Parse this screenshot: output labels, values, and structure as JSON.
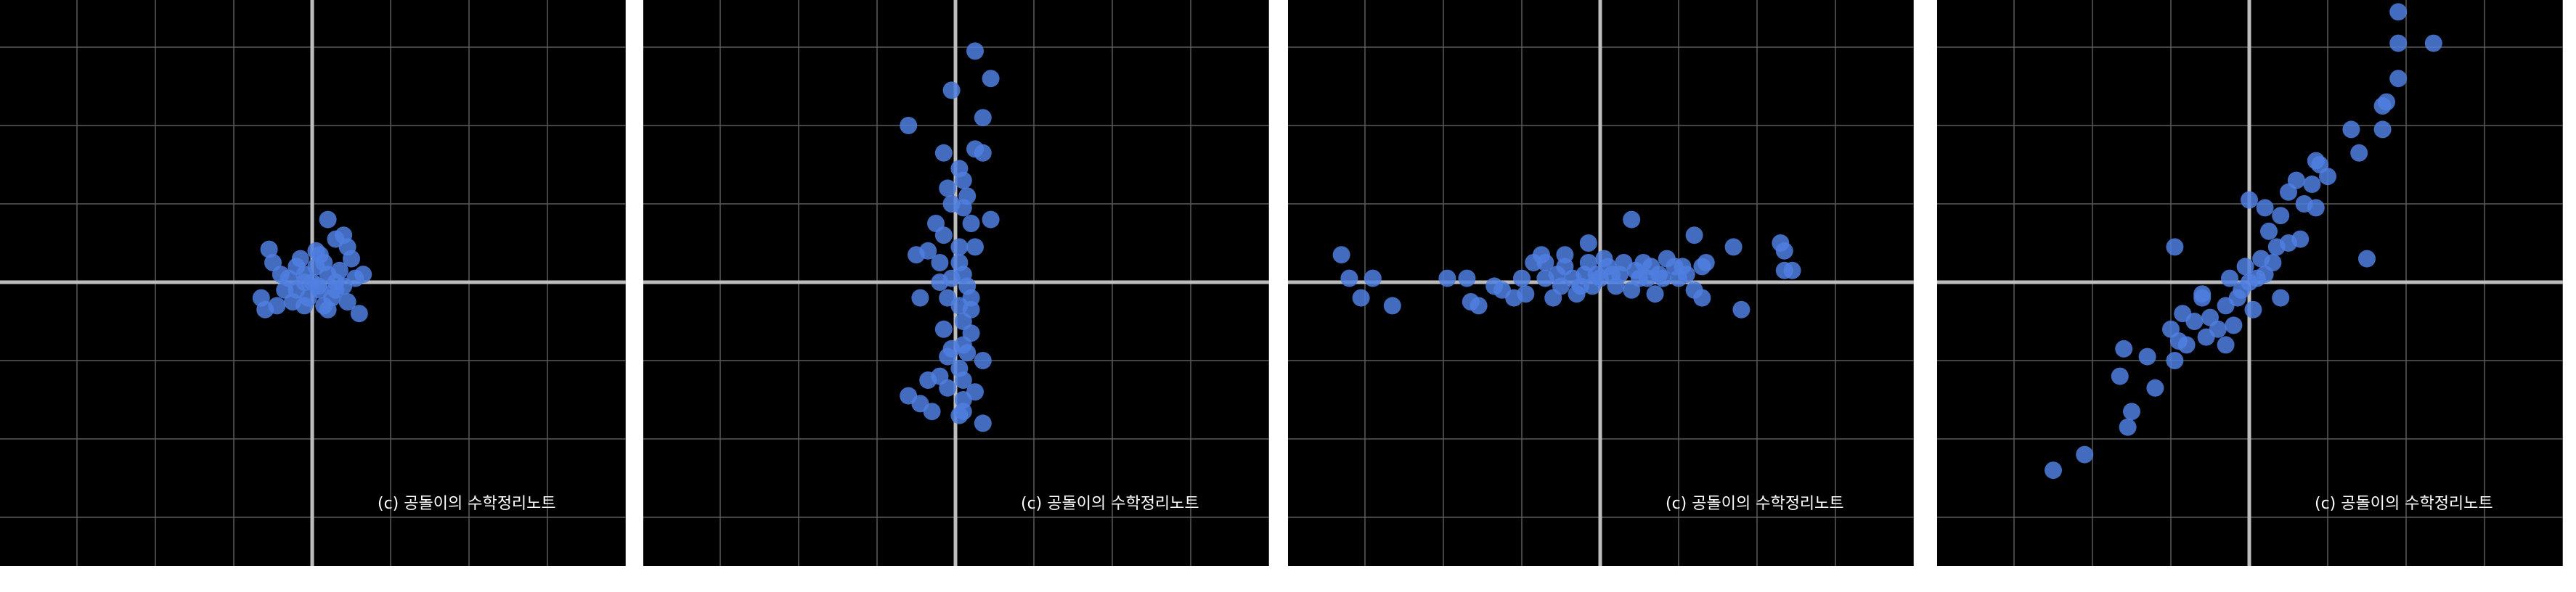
{
  "watermark": "(c) 공돌이의 수학정리노트",
  "colors": {
    "background": "#000000",
    "grid": "#5a5a5a",
    "axis": "#bdbdbd",
    "point": "#4f7fe0"
  },
  "chart_data": [
    {
      "type": "scatter",
      "title": "",
      "xlabel": "",
      "ylabel": "",
      "xlim": [
        -4,
        4
      ],
      "ylim": [
        -3.5,
        3.5
      ],
      "grid": true,
      "points": [
        [
          0,
          0
        ],
        [
          -0.1,
          0.1
        ],
        [
          0.1,
          -0.1
        ],
        [
          0.2,
          0.1
        ],
        [
          -0.2,
          -0.1
        ],
        [
          0.05,
          0.2
        ],
        [
          -0.05,
          -0.2
        ],
        [
          0.3,
          0
        ],
        [
          -0.3,
          0.05
        ],
        [
          0.15,
          0.25
        ],
        [
          -0.15,
          0.3
        ],
        [
          0.25,
          -0.2
        ],
        [
          -0.25,
          -0.25
        ],
        [
          0.35,
          0.15
        ],
        [
          -0.35,
          -0.1
        ],
        [
          0.1,
          0.35
        ],
        [
          -0.1,
          -0.3
        ],
        [
          0.4,
          -0.05
        ],
        [
          -0.4,
          0.1
        ],
        [
          0.2,
          -0.35
        ],
        [
          0.05,
          0.4
        ],
        [
          -0.5,
          0.25
        ],
        [
          0.5,
          0.3
        ],
        [
          0.45,
          -0.25
        ],
        [
          -0.45,
          -0.3
        ],
        [
          0.6,
          -0.4
        ],
        [
          -0.6,
          -0.35
        ],
        [
          0.65,
          0.1
        ],
        [
          -0.55,
          0.42
        ],
        [
          0.3,
          0.55
        ],
        [
          0.2,
          0.8
        ],
        [
          0.4,
          0.6
        ],
        [
          0.15,
          -0.3
        ],
        [
          -0.2,
          0.2
        ],
        [
          0.3,
          -0.1
        ],
        [
          -0.1,
          0
        ],
        [
          0.08,
          -0.05
        ],
        [
          0.55,
          0.05
        ],
        [
          -0.65,
          -0.2
        ],
        [
          0.45,
          0.45
        ]
      ]
    },
    {
      "type": "scatter",
      "title": "",
      "xlabel": "",
      "ylabel": "",
      "xlim": [
        -4,
        4
      ],
      "ylim": [
        -3.5,
        3.5
      ],
      "grid": true,
      "points": [
        [
          0.25,
          2.95
        ],
        [
          0.45,
          2.6
        ],
        [
          -0.05,
          2.45
        ],
        [
          0.35,
          2.1
        ],
        [
          -0.6,
          2.0
        ],
        [
          0.25,
          1.7
        ],
        [
          0.35,
          1.65
        ],
        [
          -0.15,
          1.65
        ],
        [
          0.05,
          1.45
        ],
        [
          0.1,
          1.3
        ],
        [
          -0.1,
          1.2
        ],
        [
          0.15,
          1.1
        ],
        [
          -0.05,
          1.0
        ],
        [
          0.45,
          0.8
        ],
        [
          0.1,
          0.95
        ],
        [
          0.2,
          0.75
        ],
        [
          -0.25,
          0.75
        ],
        [
          -0.15,
          0.6
        ],
        [
          -0.5,
          0.35
        ],
        [
          0.05,
          0.45
        ],
        [
          -0.35,
          0.4
        ],
        [
          0.25,
          0.45
        ],
        [
          -0.2,
          0.25
        ],
        [
          0.05,
          0.25
        ],
        [
          0.1,
          0.1
        ],
        [
          -0.05,
          0.05
        ],
        [
          0.15,
          -0.05
        ],
        [
          -0.2,
          0
        ],
        [
          0.2,
          -0.2
        ],
        [
          -0.1,
          -0.2
        ],
        [
          0.05,
          -0.3
        ],
        [
          -0.45,
          -0.2
        ],
        [
          0.1,
          -0.5
        ],
        [
          -0.15,
          -0.6
        ],
        [
          0.2,
          -0.65
        ],
        [
          0.1,
          -0.8
        ],
        [
          -0.05,
          -0.85
        ],
        [
          0.15,
          -0.9
        ],
        [
          -0.1,
          -0.95
        ],
        [
          0.05,
          -1.1
        ],
        [
          0.35,
          -1.0
        ],
        [
          0.1,
          -1.25
        ],
        [
          -0.2,
          -1.2
        ],
        [
          0.25,
          -1.4
        ],
        [
          -0.35,
          -1.25
        ],
        [
          0.1,
          -1.5
        ],
        [
          -0.6,
          -1.45
        ],
        [
          -0.45,
          -1.55
        ],
        [
          0.05,
          -1.7
        ],
        [
          -0.3,
          -1.65
        ],
        [
          0.35,
          -1.8
        ],
        [
          0.1,
          -1.65
        ],
        [
          -0.1,
          -1.35
        ],
        [
          0.2,
          -0.35
        ]
      ]
    },
    {
      "type": "scatter",
      "title": "",
      "xlabel": "",
      "ylabel": "",
      "xlim": [
        -4,
        4
      ],
      "ylim": [
        -3.5,
        3.5
      ],
      "grid": true,
      "points": [
        [
          -3.3,
          0.35
        ],
        [
          -3.2,
          0.05
        ],
        [
          -3.05,
          -0.2
        ],
        [
          -2.9,
          0.05
        ],
        [
          -2.65,
          -0.3
        ],
        [
          -1.95,
          0.05
        ],
        [
          -1.7,
          0.05
        ],
        [
          -1.65,
          -0.25
        ],
        [
          -1.55,
          -0.3
        ],
        [
          -1.35,
          -0.05
        ],
        [
          -1.25,
          -0.1
        ],
        [
          -1.1,
          -0.2
        ],
        [
          -1.0,
          0.05
        ],
        [
          -0.95,
          -0.15
        ],
        [
          -0.85,
          0.25
        ],
        [
          -0.75,
          0.35
        ],
        [
          -0.7,
          0.05
        ],
        [
          -0.6,
          -0.2
        ],
        [
          -0.55,
          0.1
        ],
        [
          -0.5,
          -0.05
        ],
        [
          -0.45,
          0.2
        ],
        [
          -0.35,
          0.05
        ],
        [
          -0.3,
          -0.15
        ],
        [
          -0.2,
          0.1
        ],
        [
          -0.15,
          0.25
        ],
        [
          -0.1,
          -0.05
        ],
        [
          -0.05,
          0.1
        ],
        [
          0,
          0.05
        ],
        [
          0.05,
          0.3
        ],
        [
          0.1,
          0.2
        ],
        [
          0.2,
          -0.05
        ],
        [
          0.25,
          0.1
        ],
        [
          0.3,
          0.25
        ],
        [
          0.4,
          -0.1
        ],
        [
          0.45,
          0.15
        ],
        [
          0.5,
          0.05
        ],
        [
          0.55,
          0.25
        ],
        [
          0.6,
          0.05
        ],
        [
          0.65,
          0.2
        ],
        [
          0.7,
          -0.15
        ],
        [
          0.75,
          0.1
        ],
        [
          0.8,
          0.05
        ],
        [
          0.85,
          0.3
        ],
        [
          0.95,
          0.2
        ],
        [
          1.0,
          0.05
        ],
        [
          1.05,
          0.2
        ],
        [
          1.1,
          0.1
        ],
        [
          1.2,
          -0.1
        ],
        [
          1.3,
          0.2
        ],
        [
          0.4,
          0.8
        ],
        [
          1.35,
          0.25
        ],
        [
          1.2,
          0.6
        ],
        [
          1.7,
          0.45
        ],
        [
          2.3,
          0.5
        ],
        [
          2.35,
          0.4
        ],
        [
          2.35,
          0.15
        ],
        [
          2.45,
          0.15
        ],
        [
          1.8,
          -0.35
        ],
        [
          1.3,
          -0.2
        ],
        [
          -0.15,
          0.5
        ],
        [
          -0.7,
          0.25
        ],
        [
          -0.45,
          0.35
        ],
        [
          0.15,
          0.1
        ],
        [
          -0.25,
          -0.05
        ]
      ]
    },
    {
      "type": "scatter",
      "title": "",
      "xlabel": "",
      "ylabel": "",
      "xlim": [
        -4,
        4
      ],
      "ylim": [
        -3.5,
        3.5
      ],
      "grid": true,
      "points": [
        [
          -2.5,
          -2.4
        ],
        [
          -2.1,
          -2.2
        ],
        [
          -1.55,
          -1.85
        ],
        [
          -1.5,
          -1.65
        ],
        [
          -1.65,
          -1.2
        ],
        [
          -1.2,
          -1.35
        ],
        [
          -1.6,
          -0.85
        ],
        [
          -1.0,
          -0.6
        ],
        [
          -1.3,
          -0.95
        ],
        [
          -0.9,
          -0.75
        ],
        [
          -0.95,
          -1.0
        ],
        [
          -0.8,
          -0.8
        ],
        [
          -0.7,
          -0.5
        ],
        [
          -0.85,
          -0.4
        ],
        [
          -0.6,
          -0.2
        ],
        [
          -0.5,
          -0.45
        ],
        [
          -0.4,
          -0.6
        ],
        [
          -0.3,
          -0.8
        ],
        [
          -0.55,
          -0.7
        ],
        [
          -0.2,
          -0.55
        ],
        [
          -0.3,
          -0.3
        ],
        [
          -0.15,
          -0.2
        ],
        [
          -0.1,
          -0.1
        ],
        [
          0,
          0
        ],
        [
          0.1,
          0.05
        ],
        [
          0.2,
          0.1
        ],
        [
          -0.05,
          0.2
        ],
        [
          0.15,
          0.3
        ],
        [
          0.3,
          0.25
        ],
        [
          0.35,
          0.45
        ],
        [
          0.4,
          -0.2
        ],
        [
          0.5,
          0.5
        ],
        [
          0.65,
          0.55
        ],
        [
          0.4,
          0.85
        ],
        [
          0.7,
          1.0
        ],
        [
          0.85,
          0.95
        ],
        [
          0.5,
          1.15
        ],
        [
          0.6,
          1.3
        ],
        [
          0.8,
          1.25
        ],
        [
          0.9,
          1.5
        ],
        [
          1.0,
          1.35
        ],
        [
          0.85,
          1.55
        ],
        [
          0.0,
          1.05
        ],
        [
          0.25,
          0.65
        ],
        [
          0.2,
          0.95
        ],
        [
          -0.95,
          0.45
        ],
        [
          1.3,
          1.95
        ],
        [
          1.4,
          1.65
        ],
        [
          1.7,
          1.95
        ],
        [
          1.75,
          2.3
        ],
        [
          1.7,
          2.25
        ],
        [
          1.9,
          2.6
        ],
        [
          1.9,
          3.05
        ],
        [
          2.35,
          3.05
        ],
        [
          1.9,
          3.45
        ],
        [
          1.5,
          0.3
        ],
        [
          -0.6,
          -0.15
        ],
        [
          -0.25,
          0.05
        ],
        [
          0.05,
          -0.35
        ]
      ]
    }
  ]
}
